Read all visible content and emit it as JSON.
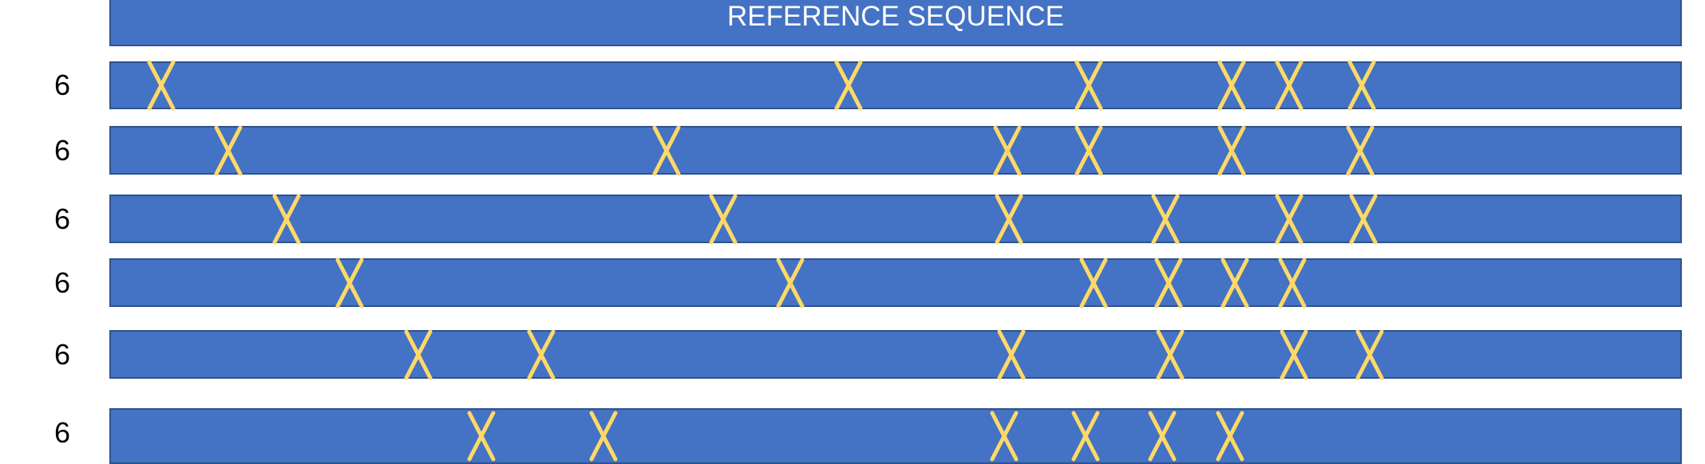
{
  "reference": {
    "label": "REFERENCE SEQUENCE"
  },
  "colors": {
    "sequence_bar": "#4472C4",
    "bar_border": "#2F528F",
    "mismatch_mark": "#FFD966",
    "reference_text": "#FFFFFF"
  },
  "mismatch_icon": "x-mark",
  "rows": [
    {
      "label": "6",
      "mismatch_positions_pct": [
        3.2,
        47.0,
        62.3,
        71.4,
        75.1,
        79.7
      ]
    },
    {
      "label": "6",
      "mismatch_positions_pct": [
        7.5,
        35.4,
        57.1,
        62.3,
        71.4,
        79.6
      ]
    },
    {
      "label": "6",
      "mismatch_positions_pct": [
        11.2,
        39.0,
        57.2,
        67.2,
        75.1,
        79.8
      ]
    },
    {
      "label": "6",
      "mismatch_positions_pct": [
        15.2,
        43.3,
        62.6,
        67.4,
        71.6,
        75.3
      ]
    },
    {
      "label": "6",
      "mismatch_positions_pct": [
        19.6,
        27.4,
        57.4,
        67.5,
        75.4,
        80.2
      ]
    },
    {
      "label": "6",
      "mismatch_positions_pct": [
        23.6,
        31.4,
        56.9,
        62.1,
        67.0,
        71.3
      ]
    }
  ]
}
